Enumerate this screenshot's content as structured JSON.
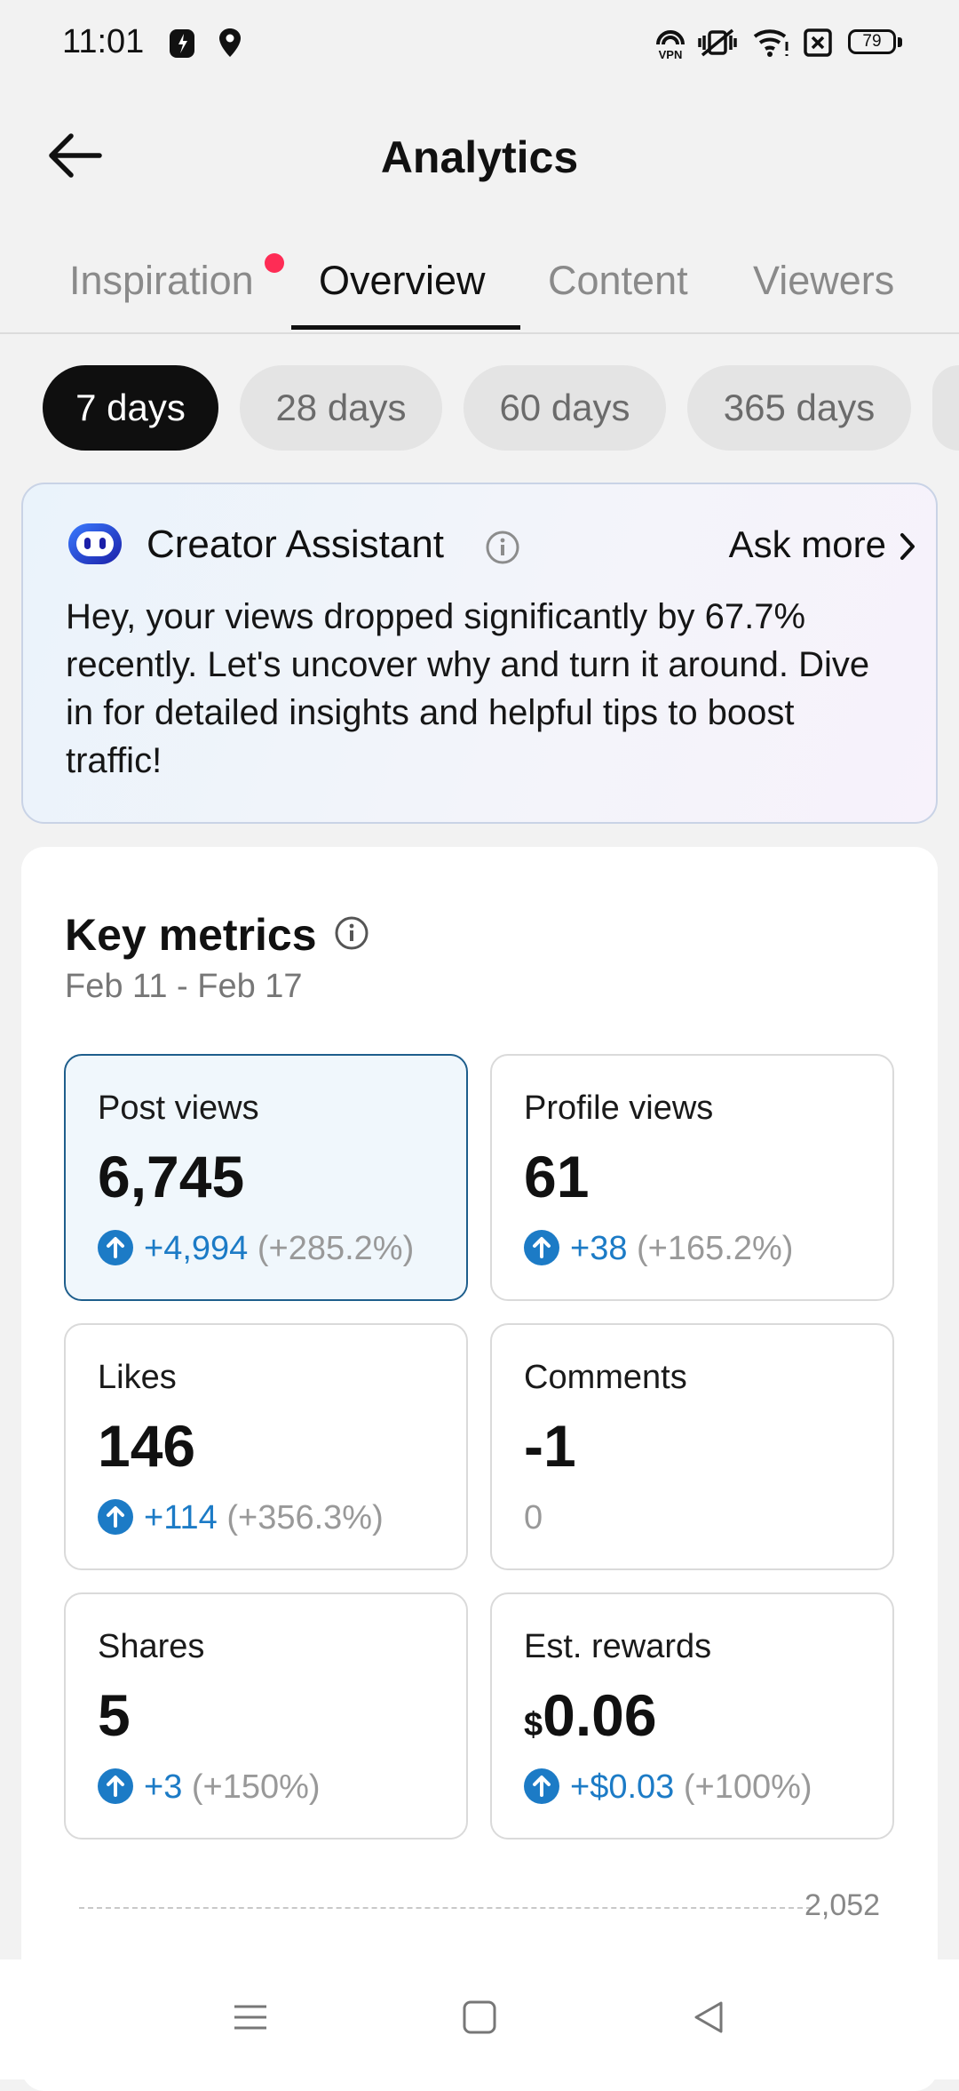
{
  "status_bar": {
    "time": "11:01",
    "battery": "79",
    "icons": [
      "app-notification-icon",
      "location-icon",
      "vpn-icon",
      "vibrate-icon",
      "wifi-icon",
      "sim-icon",
      "battery-icon"
    ]
  },
  "header": {
    "title": "Analytics",
    "back_icon": "back-arrow-icon"
  },
  "tabs": [
    {
      "label": "Inspiration",
      "active": false,
      "badge": true
    },
    {
      "label": "Overview",
      "active": true
    },
    {
      "label": "Content",
      "active": false
    },
    {
      "label": "Viewers",
      "active": false
    }
  ],
  "periods": [
    {
      "label": "7 days",
      "active": true
    },
    {
      "label": "28 days",
      "active": false
    },
    {
      "label": "60 days",
      "active": false
    },
    {
      "label": "365 days",
      "active": false
    }
  ],
  "assistant": {
    "title": "Creator Assistant",
    "ask_more": "Ask more",
    "message": "Hey, your views dropped significantly by 67.7% recently. Let's uncover why and turn it around. Dive in for detailed insights and helpful tips to boost traffic!"
  },
  "key_metrics": {
    "title": "Key metrics",
    "date_range": "Feb 11 - Feb 17",
    "tiles": [
      {
        "label": "Post views",
        "value": "6,745",
        "change": "+4,994",
        "pct": "(+285.2%)",
        "selected": true
      },
      {
        "label": "Profile views",
        "value": "61",
        "change": "+38",
        "pct": "(+165.2%)"
      },
      {
        "label": "Likes",
        "value": "146",
        "change": "+114",
        "pct": "(+356.3%)"
      },
      {
        "label": "Comments",
        "value": "-1",
        "change": "0"
      },
      {
        "label": "Shares",
        "value": "5",
        "change": "+3",
        "pct": "(+150%)"
      },
      {
        "label": "Est. rewards",
        "currency": "$",
        "value": "0.06",
        "change": "+$0.03",
        "pct": "(+100%)"
      }
    ],
    "chart_max": "2,052"
  },
  "colors": {
    "accent_blue": "#1c7bc6",
    "badge_red": "#fe2c55",
    "selected_tile_border": "#1e5e8c"
  }
}
